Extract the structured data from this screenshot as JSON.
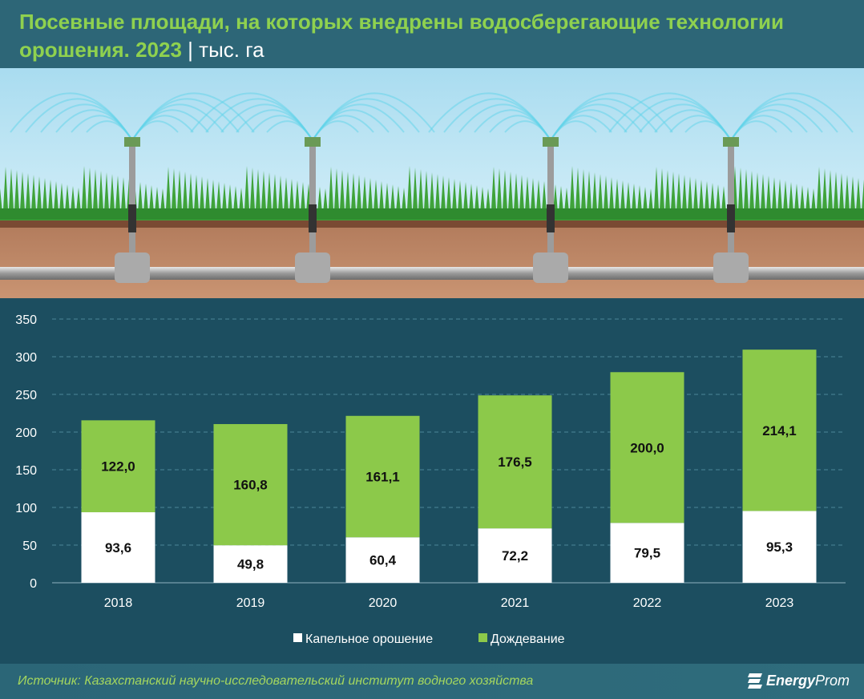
{
  "header": {
    "title": "Посевные площади, на которых внедрены водосберегающие технологии орошения. 2023",
    "separator": "|",
    "unit": "тыс. га"
  },
  "footer": {
    "source": "Источник: Казахстанский научно-исследовательский институт водного хозяйства",
    "logo_bold": "Energy",
    "logo_light": "Prom"
  },
  "colors": {
    "drip": "#ffffff",
    "sprinkle": "#8cc94a",
    "background": "#1c4e60"
  },
  "chart_data": {
    "type": "bar",
    "stacked": true,
    "title": "Посевные площади, на которых внедрены водосберегающие технологии орошения. 2023",
    "ylabel": "тыс. га",
    "categories": [
      "2018",
      "2019",
      "2020",
      "2021",
      "2022",
      "2023"
    ],
    "series": [
      {
        "name": "Капельное орошение",
        "values": [
          93.6,
          49.8,
          60.4,
          72.2,
          79.5,
          95.3
        ],
        "labels": [
          "93,6",
          "49,8",
          "60,4",
          "72,2",
          "79,5",
          "95,3"
        ]
      },
      {
        "name": "Дождевание",
        "values": [
          122.0,
          160.8,
          161.1,
          176.5,
          200.0,
          214.1
        ],
        "labels": [
          "122,0",
          "160,8",
          "161,1",
          "176,5",
          "200,0",
          "214,1"
        ]
      }
    ],
    "ylim": [
      0,
      350
    ],
    "yticks": [
      0,
      50,
      100,
      150,
      200,
      250,
      300,
      350
    ],
    "grid": true,
    "legend": "bottom"
  }
}
